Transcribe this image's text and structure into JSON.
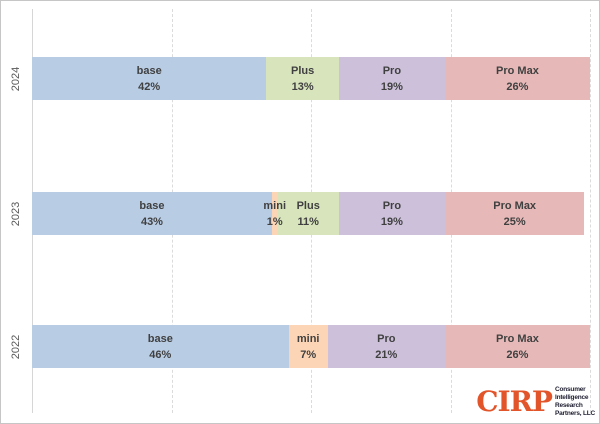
{
  "chart_data": {
    "type": "bar",
    "orientation": "horizontal-stacked",
    "title": "",
    "xlabel": "",
    "ylabel": "",
    "xlim": [
      0,
      100
    ],
    "grid": "vertical-dashed",
    "gridline_percents": [
      25,
      50,
      75,
      100
    ],
    "legend_position": "none",
    "categories": [
      "2024",
      "2023",
      "2022"
    ],
    "series_colors": {
      "base": "#B8CCE4",
      "mini": "#FBD5B5",
      "Plus": "#D7E4BC",
      "Pro": "#CCC0DA",
      "Pro Max": "#E6B9B8"
    },
    "rows": [
      {
        "year": "2024",
        "segments": [
          {
            "name": "base",
            "value": 42,
            "value_label": "42%"
          },
          {
            "name": "Plus",
            "value": 13,
            "value_label": "13%"
          },
          {
            "name": "Pro",
            "value": 19,
            "value_label": "19%"
          },
          {
            "name": "Pro Max",
            "value": 26,
            "value_label": "26%"
          }
        ]
      },
      {
        "year": "2023",
        "segments": [
          {
            "name": "base",
            "value": 43,
            "value_label": "43%"
          },
          {
            "name": "mini",
            "value": 1,
            "value_label": "1%"
          },
          {
            "name": "Plus",
            "value": 11,
            "value_label": "11%"
          },
          {
            "name": "Pro",
            "value": 19,
            "value_label": "19%"
          },
          {
            "name": "Pro Max",
            "value": 25,
            "value_label": "25%"
          }
        ]
      },
      {
        "year": "2022",
        "segments": [
          {
            "name": "base",
            "value": 46,
            "value_label": "46%"
          },
          {
            "name": "mini",
            "value": 7,
            "value_label": "7%"
          },
          {
            "name": "Pro",
            "value": 21,
            "value_label": "21%"
          },
          {
            "name": "Pro Max",
            "value": 26,
            "value_label": "26%"
          }
        ]
      }
    ]
  },
  "logo": {
    "acronym": "CIRP",
    "lines": [
      "Consumer",
      "Intelligence",
      "Research",
      "Partners, LLC"
    ],
    "accent_color": "#E2542A"
  }
}
